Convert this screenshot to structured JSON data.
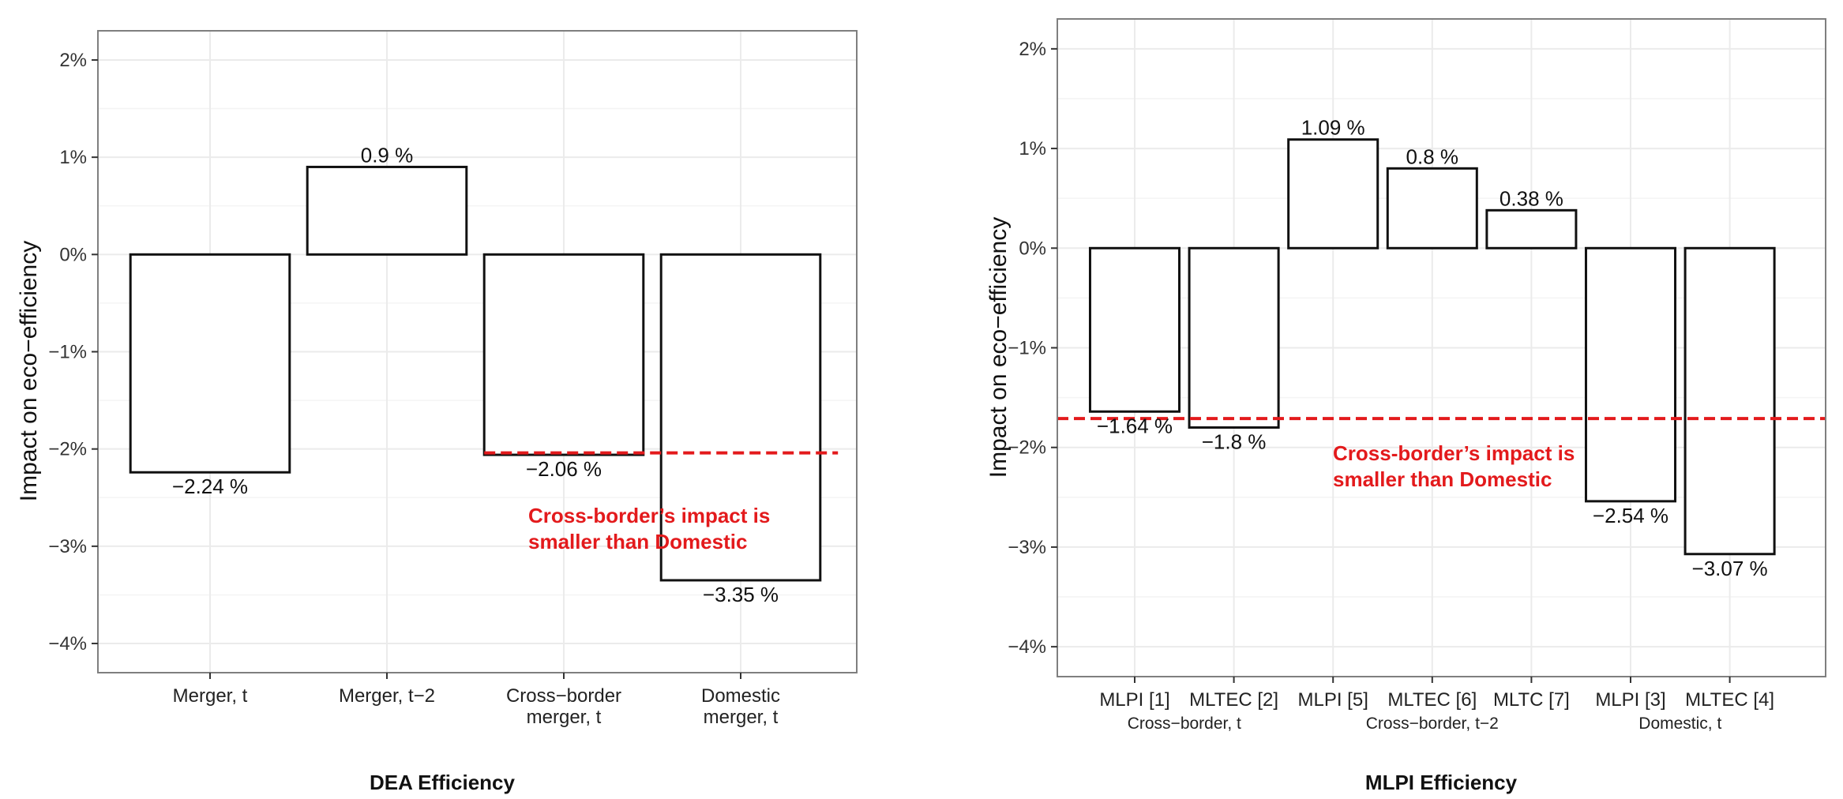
{
  "chart_data": [
    {
      "type": "bar",
      "xlabel": "DEA Efficiency",
      "ylabel": "Impact on eco−efficiency",
      "categories": [
        "Merger, t",
        "Merger, t−2",
        "Cross−border\nmerger, t",
        "Domestic\nmerger, t"
      ],
      "values": [
        -2.24,
        0.9,
        -2.06,
        -3.35
      ],
      "value_labels": [
        "−2.24 %",
        "0.9 %",
        "−2.06 %",
        "−3.35 %"
      ],
      "yticks": [
        2,
        1,
        0,
        -1,
        -2,
        -3,
        -4
      ],
      "ytick_labels": [
        "2%",
        "1%",
        "0%",
        "−1%",
        "−2%",
        "−3%",
        "−4%"
      ],
      "ylim": [
        -4.3,
        2.3
      ],
      "grid": true,
      "reference_line": {
        "value": -2.04,
        "from_category": 2.55,
        "to_category": 4.55,
        "style": "dashed",
        "color": "#e31a1c"
      },
      "annotation": [
        "Cross-border’s impact is",
        "smaller than Domestic"
      ],
      "bar_fill": "#ffffff",
      "bar_stroke": "#111111"
    },
    {
      "type": "bar",
      "xlabel": "MLPI Efficiency",
      "ylabel": "Impact on eco−efficiency",
      "categories": [
        "MLPI [1]",
        "MLTEC [2]",
        "MLPI [5]",
        "MLTEC [6]",
        "MLTC [7]",
        "MLPI [3]",
        "MLTEC [4]"
      ],
      "groups": [
        {
          "label": "Cross−border, t",
          "categories": [
            1,
            2
          ]
        },
        {
          "label": "Cross−border, t−2",
          "categories": [
            3,
            4,
            5
          ]
        },
        {
          "label": "Domestic, t",
          "categories": [
            6,
            7
          ]
        }
      ],
      "values": [
        -1.64,
        -1.8,
        1.09,
        0.8,
        0.38,
        -2.54,
        -3.07
      ],
      "value_labels": [
        "−1.64 %",
        "−1.8 %",
        "1.09 %",
        "0.8 %",
        "0.38 %",
        "−2.54 %",
        "−3.07 %"
      ],
      "yticks": [
        2,
        1,
        0,
        -1,
        -2,
        -3,
        -4
      ],
      "ytick_labels": [
        "2%",
        "1%",
        "0%",
        "−1%",
        "−2%",
        "−3%",
        "−4%"
      ],
      "ylim": [
        -4.3,
        2.3
      ],
      "grid": true,
      "reference_line": {
        "value": -1.71,
        "style": "dashed",
        "color": "#e31a1c"
      },
      "annotation": [
        "Cross-border’s impact is",
        "smaller than Domestic"
      ],
      "bar_fill": "#ffffff",
      "bar_stroke": "#111111"
    }
  ]
}
